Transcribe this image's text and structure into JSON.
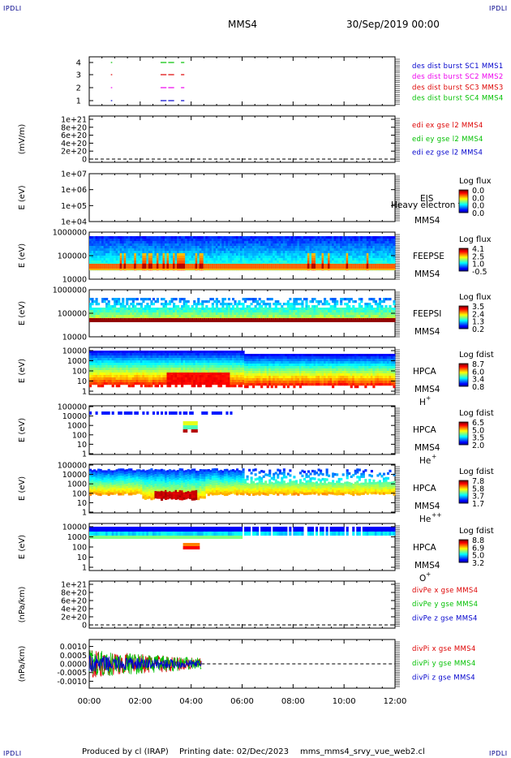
{
  "header": {
    "corner_label": "IPDLI",
    "spacecraft": "MMS4",
    "datetime": "30/Sep/2019 00:00"
  },
  "footer": {
    "produced_by": "Produced by cl (IRAP)",
    "printing_date": "Printing date: 02/Dec/2023",
    "script": "mms_mms4_srvy_vue_web2.cl"
  },
  "colors": {
    "blue": "#0000cc",
    "red": "#dd0000",
    "green": "#00c000",
    "magenta": "#ee00ee"
  },
  "chart_data": [
    {
      "type": "scatter",
      "panel": "dist_burst",
      "ylim": [
        0.5,
        4.5
      ],
      "yticks": [
        "4",
        "3",
        "2",
        "1"
      ],
      "legend": [
        "des dist burst SC1 MMS1",
        "des dist burst SC2 MMS2",
        "des dist burst SC3 MMS3",
        "des dist burst SC4 MMS4"
      ],
      "series": [
        {
          "level": 4,
          "segments": [
            [
              0.85,
              0.87
            ],
            [
              2.8,
              3.0
            ],
            [
              3.1,
              3.3
            ],
            [
              3.6,
              3.7
            ]
          ]
        },
        {
          "level": 3,
          "segments": [
            [
              0.85,
              0.87
            ],
            [
              2.8,
              3.0
            ],
            [
              3.1,
              3.3
            ],
            [
              3.6,
              3.7
            ]
          ]
        },
        {
          "level": 2,
          "segments": [
            [
              0.85,
              0.87
            ],
            [
              2.8,
              3.0
            ],
            [
              3.1,
              3.3
            ],
            [
              3.6,
              3.7
            ]
          ]
        },
        {
          "level": 1,
          "segments": [
            [
              0.85,
              0.87
            ],
            [
              2.8,
              3.0
            ],
            [
              3.1,
              3.3
            ],
            [
              3.6,
              3.7
            ]
          ]
        }
      ]
    },
    {
      "type": "line",
      "panel": "edi_e",
      "ylabel": "(mV/m)",
      "yticks": [
        "1e+21",
        "8e+20",
        "6e+20",
        "4e+20",
        "2e+20",
        "0"
      ],
      "legend": [
        "edi ex gse l2 MMS4",
        "edi ey gse l2 MMS4",
        "edi ez gse l2 MMS4"
      ],
      "values": []
    },
    {
      "type": "heatmap",
      "panel": "eis",
      "ylabel": "E (eV)",
      "yticks": [
        "1e+07",
        "1e+06",
        "1e+05",
        "1e+04"
      ],
      "instrument": "EIS",
      "instrument_sub": "MMS4",
      "overlay_text": "Heavy electron to",
      "colorbar_label": "Log flux",
      "colorbar_ticks": [
        "0.0",
        "0.0",
        "0.0",
        "0.0"
      ]
    },
    {
      "type": "heatmap",
      "panel": "feeps_e",
      "ylabel": "E (eV)",
      "yticks": [
        "1000000",
        "100000",
        "10000"
      ],
      "instrument": "FEEPSE",
      "instrument_sub": "MMS4",
      "colorbar_label": "Log flux",
      "colorbar_ticks": [
        "4.1",
        "2.5",
        "1.0",
        "-0.5"
      ]
    },
    {
      "type": "heatmap",
      "panel": "feeps_i",
      "ylabel": "E (eV)",
      "yticks": [
        "1000000",
        "100000",
        "10000"
      ],
      "instrument": "FEEPSI",
      "instrument_sub": "MMS4",
      "colorbar_label": "Log flux",
      "colorbar_ticks": [
        "3.5",
        "2.4",
        "1.3",
        "0.2"
      ]
    },
    {
      "type": "heatmap",
      "panel": "hpca_h",
      "ylabel": "E (eV)",
      "yticks": [
        "10000",
        "1000",
        "100",
        "10",
        "1"
      ],
      "instrument": "HPCA",
      "instrument_sub": "MMS4",
      "species": "H",
      "species_sup": "+",
      "colorbar_label": "Log fdist",
      "colorbar_ticks": [
        "8.7",
        "6.0",
        "3.4",
        "0.8"
      ]
    },
    {
      "type": "heatmap",
      "panel": "hpca_he1",
      "ylabel": "E (eV)",
      "yticks": [
        "100000",
        "10000",
        "1000",
        "100",
        "10",
        "1"
      ],
      "instrument": "HPCA",
      "instrument_sub": "MMS4",
      "species": "He",
      "species_sup": "+",
      "colorbar_label": "Log fdist",
      "colorbar_ticks": [
        "6.5",
        "5.0",
        "3.5",
        "2.0"
      ]
    },
    {
      "type": "heatmap",
      "panel": "hpca_he2",
      "ylabel": "E (eV)",
      "yticks": [
        "100000",
        "10000",
        "1000",
        "100",
        "10",
        "1"
      ],
      "instrument": "HPCA",
      "instrument_sub": "MMS4",
      "species": "He",
      "species_sup": "++",
      "colorbar_label": "Log fdist",
      "colorbar_ticks": [
        "7.8",
        "5.8",
        "3.7",
        "1.7"
      ]
    },
    {
      "type": "heatmap",
      "panel": "hpca_o",
      "ylabel": "E (eV)",
      "yticks": [
        "10000",
        "1000",
        "100",
        "10",
        "1"
      ],
      "instrument": "HPCA",
      "instrument_sub": "MMS4",
      "species": "O",
      "species_sup": "+",
      "colorbar_label": "Log fdist",
      "colorbar_ticks": [
        "8.8",
        "6.9",
        "5.0",
        "3.2"
      ]
    },
    {
      "type": "line",
      "panel": "divpe",
      "ylabel": "(nPa/km)",
      "yticks": [
        "1e+21",
        "8e+20",
        "6e+20",
        "4e+20",
        "2e+20",
        "0"
      ],
      "legend": [
        "divPe x gse MMS4",
        "divPe y gse MMS4",
        "divPe z gse MMS4"
      ],
      "values": []
    },
    {
      "type": "line",
      "panel": "divpi",
      "ylabel": "(nPa/km)",
      "yticks": [
        "0.0010",
        "0.0005",
        "0.0000",
        "-0.0005",
        "-0.0010"
      ],
      "ylim": [
        -0.0014,
        0.0014
      ],
      "legend": [
        "divPi x gse MMS4",
        "divPi y gse MMS4",
        "divPi z gse MMS4"
      ],
      "data_range_hours": [
        0,
        4.4
      ],
      "amplitude": 0.0008
    }
  ],
  "xaxis": {
    "tick_labels": [
      "00:00",
      "02:00",
      "04:00",
      "06:00",
      "08:00",
      "10:00",
      "12:00"
    ],
    "xlim_hours": [
      0,
      12
    ]
  }
}
